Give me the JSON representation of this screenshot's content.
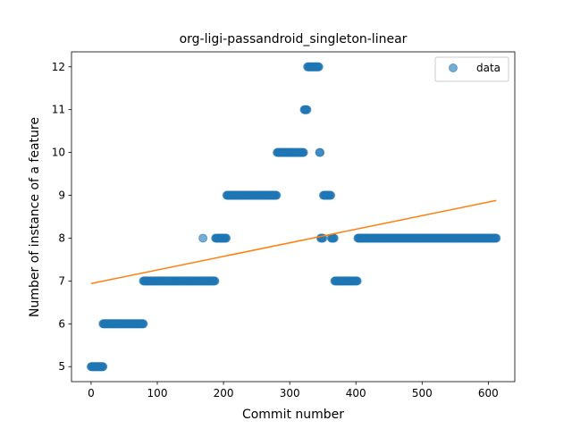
{
  "chart_data": {
    "type": "scatter",
    "title": "org-ligi-passandroid_singleton-linear",
    "xlabel": "Commit number",
    "ylabel": "Number of instance of a feature",
    "xlim": [
      -29.6,
      640
    ],
    "ylim": [
      4.65,
      12.35
    ],
    "xticks": [
      0,
      100,
      200,
      300,
      400,
      500,
      600
    ],
    "yticks": [
      5,
      6,
      7,
      8,
      9,
      10,
      11,
      12
    ],
    "xtick_labels": [
      "0",
      "100",
      "200",
      "300",
      "400",
      "500",
      "600"
    ],
    "ytick_labels": [
      "5",
      "6",
      "7",
      "8",
      "9",
      "10",
      "11",
      "12"
    ],
    "grid": false,
    "legend": {
      "position": "top-right",
      "entries": [
        "data"
      ]
    },
    "series": [
      {
        "name": "data",
        "kind": "points",
        "color": "#1f77b4",
        "runs": [
          {
            "x_start": 0,
            "x_end": 18,
            "y": 5
          },
          {
            "x_start": 18,
            "x_end": 79,
            "y": 6
          },
          {
            "x_start": 79,
            "x_end": 187,
            "y": 7
          },
          {
            "x_start": 169,
            "x_end": 169,
            "y": 8
          },
          {
            "x_start": 188,
            "x_end": 204,
            "y": 8
          },
          {
            "x_start": 205,
            "x_end": 280,
            "y": 9
          },
          {
            "x_start": 281,
            "x_end": 321,
            "y": 10
          },
          {
            "x_start": 322,
            "x_end": 326,
            "y": 11
          },
          {
            "x_start": 327,
            "x_end": 344,
            "y": 12
          },
          {
            "x_start": 345,
            "x_end": 346,
            "y": 10
          },
          {
            "x_start": 347,
            "x_end": 350,
            "y": 8
          },
          {
            "x_start": 351,
            "x_end": 362,
            "y": 9
          },
          {
            "x_start": 363,
            "x_end": 367,
            "y": 8
          },
          {
            "x_start": 368,
            "x_end": 402,
            "y": 7
          },
          {
            "x_start": 403,
            "x_end": 612,
            "y": 8
          }
        ]
      },
      {
        "name": "",
        "kind": "line",
        "color": "#ff7f0e",
        "x": [
          0,
          612
        ],
        "y": [
          6.94,
          8.88
        ]
      }
    ]
  }
}
